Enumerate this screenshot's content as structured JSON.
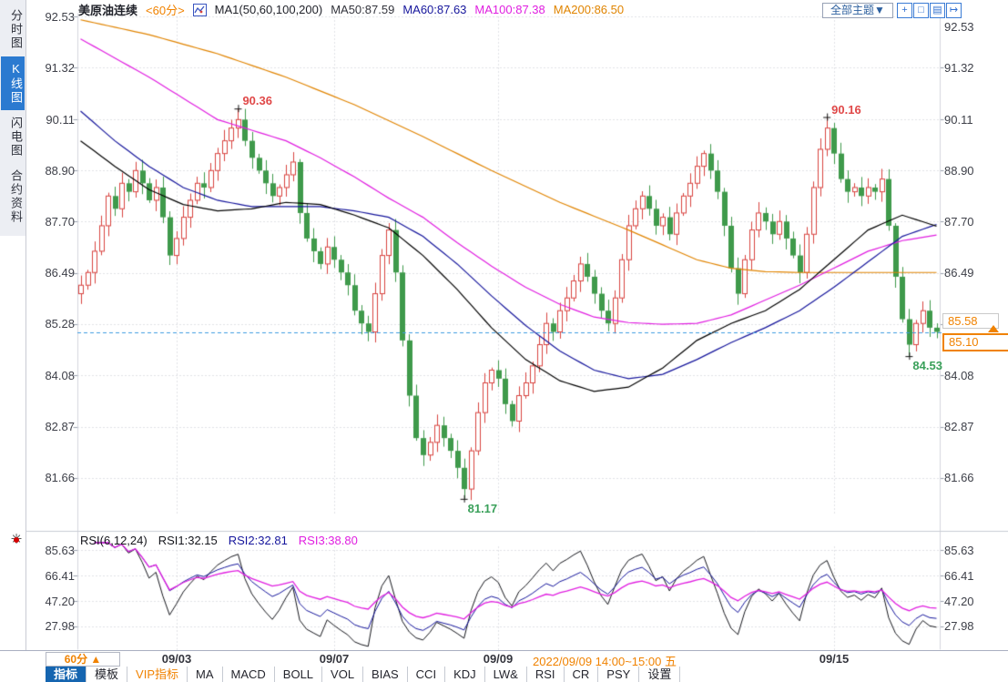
{
  "colors": {
    "accent_orange": "#f08200",
    "up_red": "#d8433f",
    "down_green": "#3f9a4b",
    "dashed_line_blue": "#3d9be0",
    "sidebar_active_blue": "#2b7ad0",
    "active_tab_blue": "#1565b0"
  },
  "sidebar": {
    "items": [
      {
        "label": "分时图",
        "active": false
      },
      {
        "label": "K线图",
        "active": true
      },
      {
        "label": "闪电图",
        "active": false
      },
      {
        "label": "合约资料",
        "active": false
      }
    ]
  },
  "header": {
    "symbol": "美原油连续",
    "period": "<60分>",
    "ma_param_label": "MA1(50,60,100,200)",
    "ma_values": [
      {
        "label": "MA50:87.59",
        "color": "#33343c"
      },
      {
        "label": "MA60:87.63",
        "color": "#16169c"
      },
      {
        "label": "MA100:87.38",
        "color": "#e01ee0"
      },
      {
        "label": "MA200:86.50",
        "color": "#e08400"
      }
    ],
    "theme_button_label": "全部主题▼",
    "tool_icons": [
      "crosshair-icon",
      "region-zoom-icon",
      "pan-chart-icon",
      "export-icon"
    ]
  },
  "price_axis": {
    "left_labels": [
      "92.53",
      "91.32",
      "90.11",
      "88.90",
      "87.70",
      "86.49",
      "85.28",
      "84.08",
      "82.87",
      "81.66"
    ],
    "right_labels": [
      "92.53",
      "91.32",
      "90.11",
      "88.90",
      "87.70",
      "86.49",
      "84.08",
      "82.87",
      "81.66"
    ],
    "tag_upper": "85.58",
    "tag_last": "85.10"
  },
  "rsi_panel": {
    "title": "RSI(6,12,24)",
    "values": [
      {
        "label": "RSI1:32.15"
      },
      {
        "label": "RSI2:32.81"
      },
      {
        "label": "RSI3:38.80"
      }
    ],
    "axis_labels": [
      "85.63",
      "66.41",
      "47.20",
      "27.98"
    ]
  },
  "status_bar": {
    "period_label": "60分 ▲",
    "date_labels": [
      "09/03",
      "09/07",
      "09/09",
      "09/15"
    ],
    "selected_range": "2022/09/09 14:00~15:00 五"
  },
  "tab_bar": {
    "tabs": [
      {
        "label": "指标"
      },
      {
        "label": "模板"
      },
      {
        "label": "VIP指标"
      },
      {
        "label": "MA"
      },
      {
        "label": "MACD"
      },
      {
        "label": "BOLL"
      },
      {
        "label": "VOL"
      },
      {
        "label": "BIAS"
      },
      {
        "label": "CCI"
      },
      {
        "label": "KDJ"
      },
      {
        "label": "LW&"
      },
      {
        "label": "RSI"
      },
      {
        "label": "CR"
      },
      {
        "label": "PSY"
      },
      {
        "label": "设置"
      }
    ]
  },
  "chart_data": {
    "type": "candlestick",
    "symbol": "美原油连续",
    "interval": "60分",
    "y_axis_values": [
      92.53,
      91.32,
      90.11,
      88.9,
      87.7,
      86.49,
      85.28,
      84.08,
      82.87,
      81.66
    ],
    "first_open": 86.0,
    "closes": [
      86.2,
      86.5,
      87.0,
      87.6,
      88.3,
      88.0,
      88.6,
      88.4,
      88.9,
      88.6,
      88.2,
      88.5,
      87.8,
      86.9,
      87.3,
      87.8,
      88.2,
      88.6,
      88.5,
      88.9,
      89.3,
      89.6,
      89.9,
      90.1,
      89.6,
      89.2,
      88.9,
      88.6,
      88.3,
      88.5,
      88.8,
      89.1,
      87.9,
      87.3,
      87.0,
      86.7,
      87.1,
      86.8,
      86.5,
      86.2,
      85.6,
      85.3,
      85.1,
      86.0,
      86.9,
      87.5,
      86.5,
      84.9,
      83.6,
      82.6,
      82.2,
      82.5,
      82.9,
      82.6,
      82.3,
      81.9,
      81.4,
      82.3,
      83.2,
      83.9,
      84.2,
      84.0,
      83.4,
      83.0,
      83.6,
      83.9,
      84.3,
      84.8,
      85.3,
      85.1,
      85.6,
      85.9,
      86.3,
      86.7,
      86.4,
      86.0,
      85.6,
      85.3,
      85.9,
      86.8,
      87.6,
      88.0,
      88.3,
      88.0,
      87.6,
      87.8,
      87.4,
      87.9,
      88.3,
      88.6,
      89.0,
      89.3,
      88.9,
      88.4,
      87.6,
      86.6,
      86.0,
      86.8,
      87.5,
      87.9,
      87.7,
      87.4,
      87.7,
      87.3,
      86.9,
      86.5,
      87.4,
      88.5,
      89.4,
      89.9,
      89.3,
      88.7,
      88.4,
      88.5,
      88.3,
      88.5,
      88.4,
      88.7,
      87.6,
      86.4,
      85.4,
      84.8,
      85.3,
      85.6,
      85.2,
      85.1
    ],
    "wick_overrides": {
      "23": {
        "high": 90.36
      },
      "42": {
        "low": 84.88
      },
      "56": {
        "low": 81.17
      },
      "109": {
        "high": 90.16
      },
      "121": {
        "low": 84.53
      }
    },
    "annotations": [
      {
        "text": "90.36",
        "index": 23,
        "price": 90.36,
        "side": "high",
        "color": "#e04848"
      },
      {
        "text": "90.16",
        "index": 109,
        "price": 90.16,
        "side": "high",
        "color": "#e04848"
      },
      {
        "text": "81.17",
        "index": 56,
        "price": 81.17,
        "side": "low",
        "color": "#3aa05a"
      },
      {
        "text": "84.53",
        "index": 121,
        "price": 84.53,
        "side": "low",
        "color": "#3aa05a"
      }
    ],
    "last_price": 85.1,
    "upper_tag_price": 85.58,
    "moving_averages": [
      {
        "name": "MA200",
        "value": 86.5,
        "color": "#e08400",
        "points": [
          [
            0,
            92.45
          ],
          [
            10,
            92.1
          ],
          [
            20,
            91.65
          ],
          [
            30,
            91.1
          ],
          [
            40,
            90.45
          ],
          [
            50,
            89.7
          ],
          [
            60,
            88.9
          ],
          [
            70,
            88.15
          ],
          [
            80,
            87.5
          ],
          [
            90,
            86.8
          ],
          [
            95,
            86.6
          ],
          [
            100,
            86.52
          ],
          [
            105,
            86.5
          ],
          [
            115,
            86.5
          ],
          [
            125,
            86.5
          ]
        ]
      },
      {
        "name": "MA100",
        "value": 87.38,
        "color": "#e01ee0",
        "points": [
          [
            0,
            92.0
          ],
          [
            5,
            91.55
          ],
          [
            10,
            91.1
          ],
          [
            15,
            90.6
          ],
          [
            20,
            90.1
          ],
          [
            25,
            89.85
          ],
          [
            30,
            89.6
          ],
          [
            35,
            89.2
          ],
          [
            40,
            88.75
          ],
          [
            45,
            88.25
          ],
          [
            50,
            87.8
          ],
          [
            55,
            87.2
          ],
          [
            60,
            86.65
          ],
          [
            65,
            86.15
          ],
          [
            70,
            85.75
          ],
          [
            75,
            85.45
          ],
          [
            80,
            85.32
          ],
          [
            85,
            85.28
          ],
          [
            90,
            85.3
          ],
          [
            95,
            85.5
          ],
          [
            100,
            85.85
          ],
          [
            105,
            86.2
          ],
          [
            110,
            86.6
          ],
          [
            115,
            87.0
          ],
          [
            120,
            87.25
          ],
          [
            125,
            87.38
          ]
        ]
      },
      {
        "name": "MA60",
        "value": 87.63,
        "color": "#16169c",
        "points": [
          [
            0,
            90.3
          ],
          [
            5,
            89.6
          ],
          [
            10,
            89.0
          ],
          [
            15,
            88.5
          ],
          [
            20,
            88.2
          ],
          [
            25,
            88.05
          ],
          [
            30,
            88.05
          ],
          [
            35,
            88.05
          ],
          [
            40,
            87.95
          ],
          [
            45,
            87.8
          ],
          [
            50,
            87.35
          ],
          [
            55,
            86.7
          ],
          [
            60,
            85.95
          ],
          [
            65,
            85.25
          ],
          [
            70,
            84.65
          ],
          [
            75,
            84.2
          ],
          [
            80,
            84.0
          ],
          [
            85,
            84.1
          ],
          [
            90,
            84.45
          ],
          [
            95,
            84.85
          ],
          [
            100,
            85.2
          ],
          [
            105,
            85.6
          ],
          [
            110,
            86.15
          ],
          [
            115,
            86.75
          ],
          [
            120,
            87.35
          ],
          [
            125,
            87.63
          ]
        ]
      },
      {
        "name": "MA50",
        "value": 87.59,
        "color": "#000000",
        "points": [
          [
            0,
            89.6
          ],
          [
            5,
            89.0
          ],
          [
            10,
            88.45
          ],
          [
            15,
            88.1
          ],
          [
            20,
            87.95
          ],
          [
            25,
            88.0
          ],
          [
            30,
            88.15
          ],
          [
            35,
            88.1
          ],
          [
            40,
            87.85
          ],
          [
            45,
            87.55
          ],
          [
            50,
            86.9
          ],
          [
            55,
            86.1
          ],
          [
            60,
            85.2
          ],
          [
            65,
            84.45
          ],
          [
            70,
            83.95
          ],
          [
            75,
            83.7
          ],
          [
            80,
            83.8
          ],
          [
            85,
            84.25
          ],
          [
            90,
            84.9
          ],
          [
            95,
            85.3
          ],
          [
            100,
            85.6
          ],
          [
            105,
            86.1
          ],
          [
            110,
            86.8
          ],
          [
            115,
            87.5
          ],
          [
            120,
            87.85
          ],
          [
            125,
            87.59
          ]
        ]
      }
    ],
    "rsi": {
      "params": [
        6,
        12,
        24
      ],
      "last_values": [
        32.15,
        32.81,
        38.8
      ],
      "colors": [
        "#15161c",
        "#16169c",
        "#e01ee0"
      ],
      "axis_values": [
        85.63,
        66.41,
        47.2,
        27.98
      ]
    },
    "x_gridlines": [
      {
        "index": 14,
        "label": "09/03"
      },
      {
        "index": 37,
        "label": "09/07"
      },
      {
        "index": 61,
        "label": "09/09"
      },
      {
        "index": 110,
        "label": "09/15"
      }
    ]
  }
}
